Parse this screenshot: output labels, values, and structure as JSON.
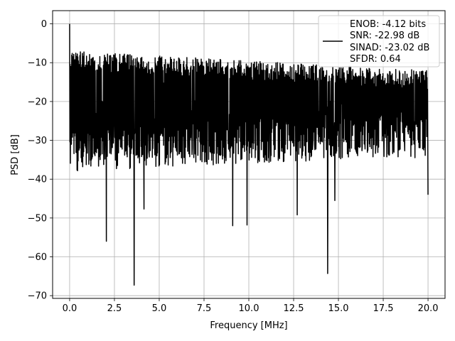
{
  "chart_data": {
    "type": "line",
    "title": "",
    "xlabel": "Frequency [MHz]",
    "ylabel": "PSD [dB]",
    "xlim": [
      -0.95,
      20.95
    ],
    "ylim": [
      -70.7,
      3.4
    ],
    "x_ticks": [
      0.0,
      2.5,
      5.0,
      7.5,
      10.0,
      12.5,
      15.0,
      17.5,
      20.0
    ],
    "x_tick_labels": [
      "0.0",
      "2.5",
      "5.0",
      "7.5",
      "10.0",
      "12.5",
      "15.0",
      "17.5",
      "20.0"
    ],
    "y_ticks": [
      0,
      -10,
      -20,
      -30,
      -40,
      -50,
      -60,
      -70
    ],
    "y_tick_labels": [
      "0",
      "−10",
      "−20",
      "−30",
      "−40",
      "−50",
      "−60",
      "−70"
    ],
    "grid": true,
    "legend_position": "top-right",
    "series": [
      {
        "name": "ENOB: -4.12 bits\nSNR: -22.98 dB\nSINAD: -23.02 dB\nSFDR: 0.64",
        "legend_lines": [
          "ENOB: -4.12 bits",
          "SNR: -22.98 dB",
          "SINAD: -23.02 dB",
          "SFDR: 0.64"
        ],
        "color": "#000000",
        "x_range": [
          0,
          20
        ],
        "notable_points": [
          {
            "x": 0.0,
            "y": 0.0
          },
          {
            "x": 0.05,
            "y": -28.0
          },
          {
            "x": 2.05,
            "y": -56.0
          },
          {
            "x": 3.6,
            "y": -67.3
          },
          {
            "x": 4.15,
            "y": -47.7
          },
          {
            "x": 9.1,
            "y": -52.0
          },
          {
            "x": 9.9,
            "y": -51.8
          },
          {
            "x": 12.7,
            "y": -49.2
          },
          {
            "x": 14.4,
            "y": -64.3
          },
          {
            "x": 14.8,
            "y": -45.5
          },
          {
            "x": 20.0,
            "y": -44.0
          }
        ],
        "typical_upper_envelope_start": -7,
        "typical_upper_envelope_end": -12,
        "typical_lower_envelope": -38
      }
    ]
  }
}
